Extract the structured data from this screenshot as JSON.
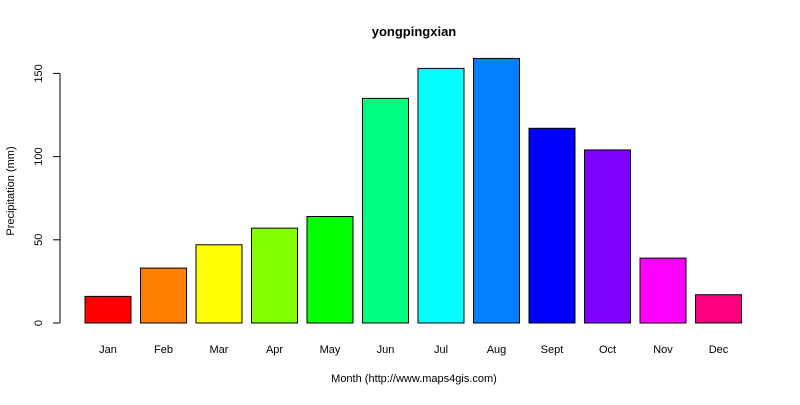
{
  "chart_data": {
    "type": "bar",
    "title": "yongpingxian",
    "xlabel": "Month (http://www.maps4gis.com)",
    "ylabel": "Precipitation (mm)",
    "categories": [
      "Jan",
      "Feb",
      "Mar",
      "Apr",
      "May",
      "Jun",
      "Jul",
      "Aug",
      "Sept",
      "Oct",
      "Nov",
      "Dec"
    ],
    "values": [
      16,
      33,
      47,
      57,
      64,
      135,
      153,
      159,
      117,
      104,
      39,
      17
    ],
    "colors": [
      "#FF0000",
      "#FF8000",
      "#FFFF00",
      "#80FF00",
      "#00FF00",
      "#00FF80",
      "#00FFFF",
      "#0080FF",
      "#0000FF",
      "#8000FF",
      "#FF00FF",
      "#FF0080"
    ],
    "yticks": [
      0,
      50,
      100,
      150
    ],
    "ylim": [
      0,
      165
    ],
    "grid": false,
    "legend": "none"
  }
}
